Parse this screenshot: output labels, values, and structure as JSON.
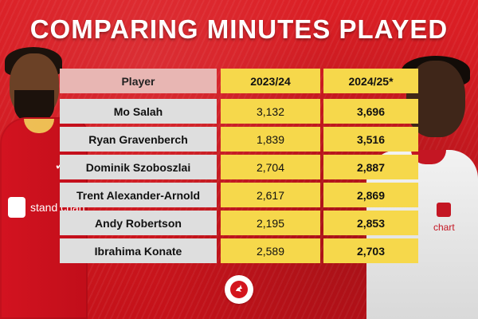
{
  "title": "COMPARING MINUTES PLAYED",
  "table": {
    "headers": [
      "Player",
      "2023/24",
      "2024/25*"
    ],
    "rows": [
      {
        "player": "Mo Salah",
        "y2023": "3,132",
        "y2024": "3,696"
      },
      {
        "player": "Ryan Gravenberch",
        "y2023": "1,839",
        "y2024": "3,516"
      },
      {
        "player": "Dominik Szoboszlai",
        "y2023": "2,704",
        "y2024": "2,887"
      },
      {
        "player": "Trent Alexander-Arnold",
        "y2023": "2,617",
        "y2024": "2,869"
      },
      {
        "player": "Andy Robertson",
        "y2023": "2,195",
        "y2024": "2,853"
      },
      {
        "player": "Ibrahima Konate",
        "y2023": "2,589",
        "y2024": "2,703"
      }
    ]
  },
  "left_shirt_sponsor": "stand\nchart",
  "right_shirt_sponsor": "chart",
  "colors": {
    "background": "#d3151d",
    "header_player": "#e8b6b3",
    "header_year": "#f6d84b",
    "name_cell": "#dedede",
    "value_cell": "#f6d84b"
  },
  "icons": {
    "logo": "liver-bird-logo",
    "left_player": "player-photo",
    "right_player": "player-photo"
  }
}
